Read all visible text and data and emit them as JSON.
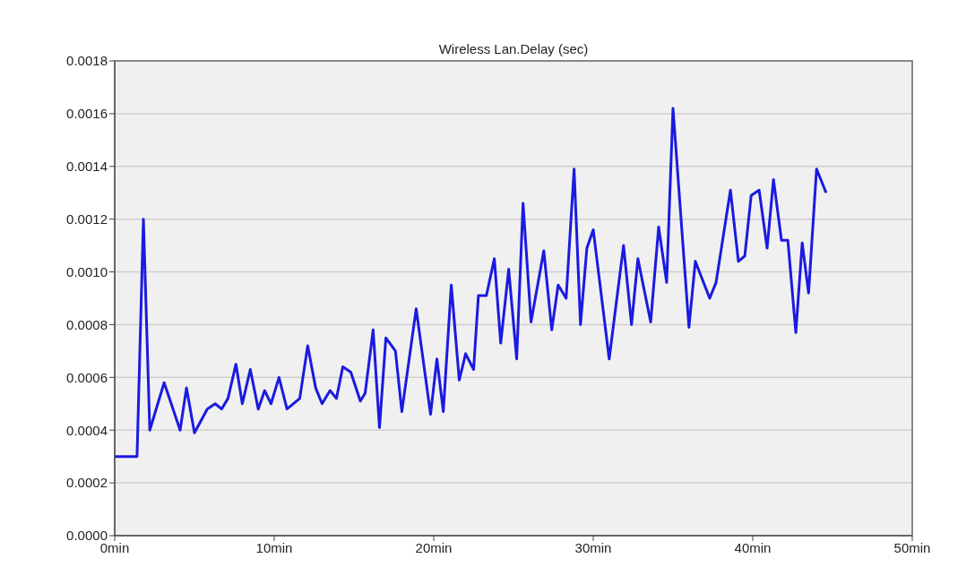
{
  "chart_data": {
    "type": "line",
    "title": "Wireless Lan.Delay (sec)",
    "x": [
      0,
      1.4,
      1.8,
      2.2,
      3.1,
      4.1,
      4.5,
      5.0,
      5.8,
      6.3,
      6.7,
      7.1,
      7.6,
      8.0,
      8.5,
      9.0,
      9.4,
      9.8,
      10.3,
      10.8,
      11.6,
      12.1,
      12.6,
      13.0,
      13.5,
      13.9,
      14.3,
      14.8,
      15.4,
      15.7,
      16.2,
      16.6,
      17.0,
      17.6,
      18.0,
      18.9,
      19.8,
      20.2,
      20.6,
      21.1,
      21.6,
      22.0,
      22.5,
      22.8,
      23.3,
      23.8,
      24.2,
      24.7,
      25.2,
      25.6,
      26.1,
      26.9,
      27.4,
      27.8,
      28.3,
      28.8,
      29.2,
      29.6,
      30.0,
      31.0,
      31.9,
      32.4,
      32.8,
      33.6,
      34.1,
      34.6,
      35.0,
      36.0,
      36.4,
      37.3,
      37.7,
      38.6,
      39.1,
      39.5,
      39.9,
      40.4,
      40.9,
      41.3,
      41.8,
      42.2,
      42.7,
      43.1,
      43.5,
      44.0,
      44.6
    ],
    "series": [
      {
        "color": "#1a1ae0",
        "values": [
          0.0003,
          0.0003,
          0.0012,
          0.0004,
          0.00058,
          0.0004,
          0.00056,
          0.00039,
          0.00048,
          0.0005,
          0.00048,
          0.00052,
          0.00065,
          0.0005,
          0.00063,
          0.00048,
          0.00055,
          0.0005,
          0.0006,
          0.00048,
          0.00052,
          0.00072,
          0.00056,
          0.0005,
          0.00055,
          0.00052,
          0.00064,
          0.00062,
          0.00051,
          0.00054,
          0.00078,
          0.00041,
          0.00075,
          0.0007,
          0.00047,
          0.00086,
          0.00046,
          0.00067,
          0.00047,
          0.00095,
          0.00059,
          0.00069,
          0.00063,
          0.00091,
          0.00091,
          0.00105,
          0.00073,
          0.00101,
          0.00067,
          0.00126,
          0.00081,
          0.00108,
          0.00078,
          0.00095,
          0.0009,
          0.00139,
          0.0008,
          0.00109,
          0.00116,
          0.00067,
          0.0011,
          0.0008,
          0.00105,
          0.00081,
          0.00117,
          0.00096,
          0.00162,
          0.00079,
          0.00104,
          0.0009,
          0.00096,
          0.00131,
          0.00104,
          0.00106,
          0.00129,
          0.00131,
          0.00109,
          0.00135,
          0.00112,
          0.00112,
          0.00077,
          0.00111,
          0.00092,
          0.00139,
          0.0013
        ]
      }
    ],
    "xlim": [
      0,
      50
    ],
    "xticks": [
      {
        "value": 0,
        "label": "0min"
      },
      {
        "value": 10,
        "label": "10min"
      },
      {
        "value": 20,
        "label": "20min"
      },
      {
        "value": 30,
        "label": "30min"
      },
      {
        "value": 40,
        "label": "40min"
      },
      {
        "value": 50,
        "label": "50min"
      }
    ],
    "ylim": [
      0,
      0.0018
    ],
    "yticks": [
      {
        "value": 0,
        "label": "0.0000"
      },
      {
        "value": 0.0002,
        "label": "0.0002"
      },
      {
        "value": 0.0004,
        "label": "0.0004"
      },
      {
        "value": 0.0006,
        "label": "0.0006"
      },
      {
        "value": 0.0008,
        "label": "0.0008"
      },
      {
        "value": 0.001,
        "label": "0.0010"
      },
      {
        "value": 0.0012,
        "label": "0.0012"
      },
      {
        "value": 0.0014,
        "label": "0.0014"
      },
      {
        "value": 0.0016,
        "label": "0.0016"
      },
      {
        "value": 0.0018,
        "label": "0.0018"
      }
    ],
    "grid": "y",
    "legend": false,
    "marker": "none",
    "line_style": "solid"
  }
}
